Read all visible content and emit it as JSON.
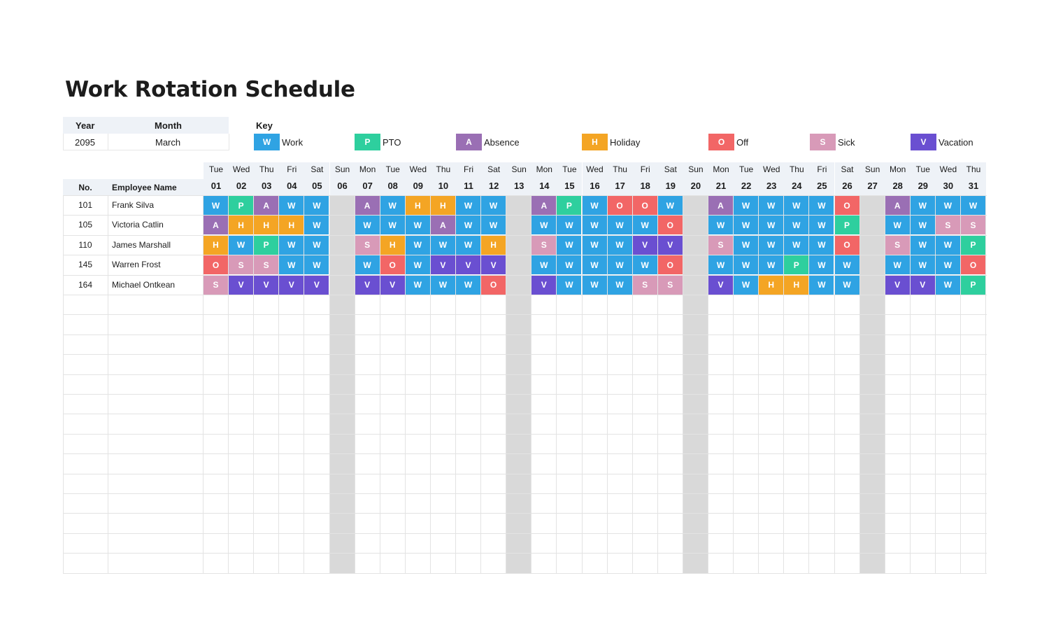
{
  "title": "Work Rotation Schedule",
  "period": {
    "year_label": "Year",
    "month_label": "Month",
    "year": "2095",
    "month": "March"
  },
  "key": {
    "label": "Key",
    "items": [
      {
        "code": "W",
        "label": "Work",
        "color": "#2fa3e3"
      },
      {
        "code": "P",
        "label": "PTO",
        "color": "#2ecf9e"
      },
      {
        "code": "A",
        "label": "Absence",
        "color": "#9a6fb4"
      },
      {
        "code": "H",
        "label": "Holiday",
        "color": "#f4a524"
      },
      {
        "code": "O",
        "label": "Off",
        "color": "#f26666"
      },
      {
        "code": "S",
        "label": "Sick",
        "color": "#d89ab8"
      },
      {
        "code": "V",
        "label": "Vacation",
        "color": "#6a4fd1"
      }
    ]
  },
  "table": {
    "no_header": "No.",
    "name_header": "Employee Name",
    "days": [
      {
        "dow": "Tue",
        "num": "01"
      },
      {
        "dow": "Wed",
        "num": "02"
      },
      {
        "dow": "Thu",
        "num": "03"
      },
      {
        "dow": "Fri",
        "num": "04"
      },
      {
        "dow": "Sat",
        "num": "05"
      },
      {
        "dow": "Sun",
        "num": "06"
      },
      {
        "dow": "Mon",
        "num": "07"
      },
      {
        "dow": "Tue",
        "num": "08"
      },
      {
        "dow": "Wed",
        "num": "09"
      },
      {
        "dow": "Thu",
        "num": "10"
      },
      {
        "dow": "Fri",
        "num": "11"
      },
      {
        "dow": "Sat",
        "num": "12"
      },
      {
        "dow": "Sun",
        "num": "13"
      },
      {
        "dow": "Mon",
        "num": "14"
      },
      {
        "dow": "Tue",
        "num": "15"
      },
      {
        "dow": "Wed",
        "num": "16"
      },
      {
        "dow": "Thu",
        "num": "17"
      },
      {
        "dow": "Fri",
        "num": "18"
      },
      {
        "dow": "Sat",
        "num": "19"
      },
      {
        "dow": "Sun",
        "num": "20"
      },
      {
        "dow": "Mon",
        "num": "21"
      },
      {
        "dow": "Tue",
        "num": "22"
      },
      {
        "dow": "Wed",
        "num": "23"
      },
      {
        "dow": "Thu",
        "num": "24"
      },
      {
        "dow": "Fri",
        "num": "25"
      },
      {
        "dow": "Sat",
        "num": "26"
      },
      {
        "dow": "Sun",
        "num": "27"
      },
      {
        "dow": "Mon",
        "num": "28"
      },
      {
        "dow": "Tue",
        "num": "29"
      },
      {
        "dow": "Wed",
        "num": "30"
      },
      {
        "dow": "Thu",
        "num": "31"
      }
    ],
    "employees": [
      {
        "no": "101",
        "name": "Frank Silva",
        "codes": [
          "W",
          "P",
          "A",
          "W",
          "W",
          "",
          "A",
          "W",
          "H",
          "H",
          "W",
          "W",
          "",
          "A",
          "P",
          "W",
          "O",
          "O",
          "W",
          "",
          "A",
          "W",
          "W",
          "W",
          "W",
          "O",
          "",
          "A",
          "W",
          "W",
          "W"
        ]
      },
      {
        "no": "105",
        "name": "Victoria Catlin",
        "codes": [
          "A",
          "H",
          "H",
          "H",
          "W",
          "",
          "W",
          "W",
          "W",
          "A",
          "W",
          "W",
          "",
          "W",
          "W",
          "W",
          "W",
          "W",
          "O",
          "",
          "W",
          "W",
          "W",
          "W",
          "W",
          "P",
          "",
          "W",
          "W",
          "S",
          "S"
        ]
      },
      {
        "no": "110",
        "name": "James Marshall",
        "codes": [
          "H",
          "W",
          "P",
          "W",
          "W",
          "",
          "S",
          "H",
          "W",
          "W",
          "W",
          "H",
          "",
          "S",
          "W",
          "W",
          "W",
          "V",
          "V",
          "",
          "S",
          "W",
          "W",
          "W",
          "W",
          "O",
          "",
          "S",
          "W",
          "W",
          "P"
        ]
      },
      {
        "no": "145",
        "name": "Warren Frost",
        "codes": [
          "O",
          "S",
          "S",
          "W",
          "W",
          "",
          "W",
          "O",
          "W",
          "V",
          "V",
          "V",
          "",
          "W",
          "W",
          "W",
          "W",
          "W",
          "O",
          "",
          "W",
          "W",
          "W",
          "P",
          "W",
          "W",
          "",
          "W",
          "W",
          "W",
          "O"
        ]
      },
      {
        "no": "164",
        "name": "Michael Ontkean",
        "codes": [
          "S",
          "V",
          "V",
          "V",
          "V",
          "",
          "V",
          "V",
          "W",
          "W",
          "W",
          "O",
          "",
          "V",
          "W",
          "W",
          "W",
          "S",
          "S",
          "",
          "V",
          "W",
          "H",
          "H",
          "W",
          "W",
          "",
          "V",
          "V",
          "W",
          "P"
        ]
      }
    ]
  }
}
